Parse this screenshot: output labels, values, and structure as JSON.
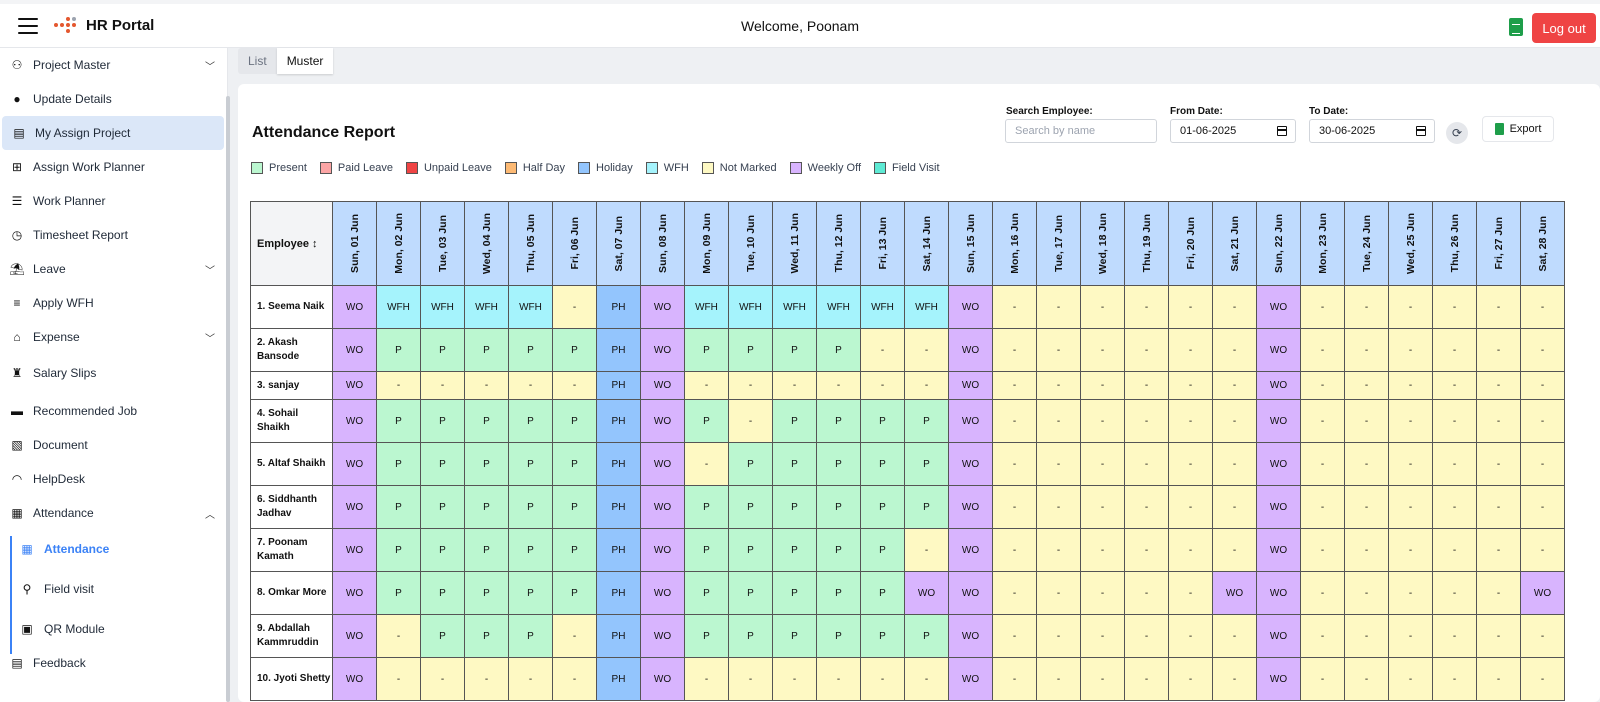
{
  "header": {
    "app_name": "HR Portal",
    "welcome": "Welcome, Poonam",
    "logout_label": "Log out"
  },
  "sidebar": {
    "items": [
      {
        "label": "Project Master",
        "icon": "project-icon",
        "chevron": "down"
      },
      {
        "label": "Update Details",
        "icon": "user-icon"
      },
      {
        "label": "My Assign Project",
        "icon": "clipboard-icon",
        "active": true
      },
      {
        "label": "Assign Work Planner",
        "icon": "plus-box-icon"
      },
      {
        "label": "Work Planner",
        "icon": "checklist-icon"
      },
      {
        "label": "Timesheet Report",
        "icon": "clock-icon"
      },
      {
        "label": "Leave",
        "icon": "beach-icon",
        "chevron": "down"
      },
      {
        "label": "Apply WFH",
        "icon": "list-plus-icon"
      },
      {
        "label": "Expense",
        "icon": "bank-icon",
        "chevron": "down"
      },
      {
        "label": "Salary Slips",
        "icon": "money-bag-icon"
      },
      {
        "label": "Recommended Job",
        "icon": "briefcase-icon"
      },
      {
        "label": "Document",
        "icon": "document-icon"
      },
      {
        "label": "HelpDesk",
        "icon": "headset-icon"
      },
      {
        "label": "Attendance",
        "icon": "calendar-check-icon",
        "chevron": "up"
      }
    ],
    "subitems": [
      {
        "label": "Attendance",
        "icon": "calendar-icon",
        "current": true
      },
      {
        "label": "Field visit",
        "icon": "map-pin-icon"
      },
      {
        "label": "QR Module",
        "icon": "qr-icon"
      }
    ],
    "footer_item": {
      "label": "Feedback",
      "icon": "feedback-icon"
    }
  },
  "tabs": [
    {
      "label": "List",
      "active": false
    },
    {
      "label": "Muster",
      "active": true
    }
  ],
  "report": {
    "title": "Attendance Report",
    "search_label": "Search Employee:",
    "search_placeholder": "Search by name",
    "from_label": "From Date:",
    "from_value": "01-06-2025",
    "to_label": "To Date:",
    "to_value": "30-06-2025",
    "export_label": "Export",
    "employee_header": "Employee",
    "sort_icon": "↕"
  },
  "legend": [
    {
      "label": "Present",
      "color": "#bbf7d0"
    },
    {
      "label": "Paid Leave",
      "color": "#fca5a5"
    },
    {
      "label": "Unpaid Leave",
      "color": "#ef4444"
    },
    {
      "label": "Half Day",
      "color": "#fdba74"
    },
    {
      "label": "Holiday",
      "color": "#93c5fd"
    },
    {
      "label": "WFH",
      "color": "#a5f3fc"
    },
    {
      "label": "Not Marked",
      "color": "#fef9c3"
    },
    {
      "label": "Weekly Off",
      "color": "#d8b4fe"
    },
    {
      "label": "Field Visit",
      "color": "#5eead4"
    }
  ],
  "days": [
    "Sun, 01 Jun",
    "Mon, 02 Jun",
    "Tue, 03 Jun",
    "Wed, 04 Jun",
    "Thu, 05 Jun",
    "Fri, 06 Jun",
    "Sat, 07 Jun",
    "Sun, 08 Jun",
    "Mon, 09 Jun",
    "Tue, 10 Jun",
    "Wed, 11 Jun",
    "Thu, 12 Jun",
    "Fri, 13 Jun",
    "Sat, 14 Jun",
    "Sun, 15 Jun",
    "Mon, 16 Jun",
    "Tue, 17 Jun",
    "Wed, 18 Jun",
    "Thu, 19 Jun",
    "Fri, 20 Jun",
    "Sat, 21 Jun",
    "Sun, 22 Jun",
    "Mon, 23 Jun",
    "Tue, 24 Jun",
    "Wed, 25 Jun",
    "Thu, 26 Jun",
    "Fri, 27 Jun",
    "Sat, 28 Jun"
  ],
  "employees": [
    {
      "name": "1. Seema Naik",
      "cells": [
        "WO",
        "WFH",
        "WFH",
        "WFH",
        "WFH",
        "-",
        "PH",
        "WO",
        "WFH",
        "WFH",
        "WFH",
        "WFH",
        "WFH",
        "WFH",
        "WO",
        "-",
        "-",
        "-",
        "-",
        "-",
        "-",
        "WO",
        "-",
        "-",
        "-",
        "-",
        "-",
        "-"
      ]
    },
    {
      "name": "2. Akash Bansode",
      "cells": [
        "WO",
        "P",
        "P",
        "P",
        "P",
        "P",
        "PH",
        "WO",
        "P",
        "P",
        "P",
        "P",
        "-",
        "-",
        "WO",
        "-",
        "-",
        "-",
        "-",
        "-",
        "-",
        "WO",
        "-",
        "-",
        "-",
        "-",
        "-",
        "-"
      ]
    },
    {
      "name": "3. sanjay",
      "cells": [
        "WO",
        "-",
        "-",
        "-",
        "-",
        "-",
        "PH",
        "WO",
        "-",
        "-",
        "-",
        "-",
        "-",
        "-",
        "WO",
        "-",
        "-",
        "-",
        "-",
        "-",
        "-",
        "WO",
        "-",
        "-",
        "-",
        "-",
        "-",
        "-"
      ]
    },
    {
      "name": "4. Sohail Shaikh",
      "cells": [
        "WO",
        "P",
        "P",
        "P",
        "P",
        "P",
        "PH",
        "WO",
        "P",
        "-",
        "P",
        "P",
        "P",
        "P",
        "WO",
        "-",
        "-",
        "-",
        "-",
        "-",
        "-",
        "WO",
        "-",
        "-",
        "-",
        "-",
        "-",
        "-"
      ]
    },
    {
      "name": "5. Altaf Shaikh",
      "cells": [
        "WO",
        "P",
        "P",
        "P",
        "P",
        "P",
        "PH",
        "WO",
        "-",
        "P",
        "P",
        "P",
        "P",
        "P",
        "WO",
        "-",
        "-",
        "-",
        "-",
        "-",
        "-",
        "WO",
        "-",
        "-",
        "-",
        "-",
        "-",
        "-"
      ]
    },
    {
      "name": "6. Siddhanth Jadhav",
      "cells": [
        "WO",
        "P",
        "P",
        "P",
        "P",
        "P",
        "PH",
        "WO",
        "P",
        "P",
        "P",
        "P",
        "P",
        "P",
        "WO",
        "-",
        "-",
        "-",
        "-",
        "-",
        "-",
        "WO",
        "-",
        "-",
        "-",
        "-",
        "-",
        "-"
      ]
    },
    {
      "name": "7. Poonam Kamath",
      "cells": [
        "WO",
        "P",
        "P",
        "P",
        "P",
        "P",
        "PH",
        "WO",
        "P",
        "P",
        "P",
        "P",
        "P",
        "-",
        "WO",
        "-",
        "-",
        "-",
        "-",
        "-",
        "-",
        "WO",
        "-",
        "-",
        "-",
        "-",
        "-",
        "-"
      ]
    },
    {
      "name": "8. Omkar More",
      "cells": [
        "WO",
        "P",
        "P",
        "P",
        "P",
        "P",
        "PH",
        "WO",
        "P",
        "P",
        "P",
        "P",
        "P",
        "WO",
        "WO",
        "-",
        "-",
        "-",
        "-",
        "-",
        "WO",
        "WO",
        "-",
        "-",
        "-",
        "-",
        "-",
        "WO"
      ]
    },
    {
      "name": "9. Abdallah Kammruddin",
      "cells": [
        "WO",
        "-",
        "P",
        "P",
        "P",
        "-",
        "PH",
        "WO",
        "P",
        "P",
        "P",
        "P",
        "P",
        "P",
        "WO",
        "-",
        "-",
        "-",
        "-",
        "-",
        "-",
        "WO",
        "-",
        "-",
        "-",
        "-",
        "-",
        "-"
      ]
    },
    {
      "name": "10. Jyoti Shetty",
      "cells": [
        "WO",
        "-",
        "-",
        "-",
        "-",
        "-",
        "PH",
        "WO",
        "-",
        "-",
        "-",
        "-",
        "-",
        "-",
        "WO",
        "-",
        "-",
        "-",
        "-",
        "-",
        "-",
        "WO",
        "-",
        "-",
        "-",
        "-",
        "-",
        "-"
      ]
    }
  ]
}
